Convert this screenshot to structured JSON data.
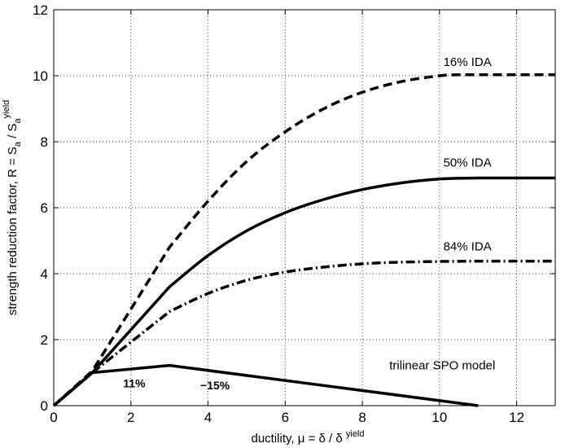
{
  "chart_data": {
    "type": "line",
    "xlabel": {
      "prefix": "ductility, ",
      "symbol": "μ",
      "mid": " = δ / δ ",
      "sup": "yield"
    },
    "ylabel": {
      "prefix": "strength reduction factor, R = S",
      "sub1": "a",
      "mid": " / S",
      "sub2": "a",
      "sup": "yield"
    },
    "xlim": [
      0,
      13
    ],
    "ylim": [
      0,
      12
    ],
    "xticks": [
      0,
      2,
      4,
      6,
      8,
      10,
      12
    ],
    "yticks": [
      0,
      2,
      4,
      6,
      8,
      10,
      12
    ],
    "grid": true,
    "series": [
      {
        "name": "16% IDA",
        "style": "dashed",
        "x": [
          0,
          1,
          3,
          4,
          5,
          6,
          7,
          8,
          9,
          10,
          10.5,
          11,
          12,
          13
        ],
        "y": [
          0,
          1.05,
          4.8,
          6.2,
          7.4,
          8.3,
          9.0,
          9.5,
          9.82,
          10.0,
          10.03,
          10.03,
          10.03,
          10.03
        ]
      },
      {
        "name": "50% IDA",
        "style": "solid",
        "x": [
          0,
          1,
          3,
          4,
          5,
          6,
          7,
          8,
          9,
          10,
          11,
          12,
          13
        ],
        "y": [
          0,
          1.0,
          3.6,
          4.55,
          5.3,
          5.85,
          6.25,
          6.55,
          6.75,
          6.87,
          6.9,
          6.9,
          6.9
        ]
      },
      {
        "name": "84% IDA",
        "style": "dashdot",
        "x": [
          0,
          1,
          3,
          4,
          5,
          6,
          7,
          8,
          9,
          10,
          11,
          12,
          13
        ],
        "y": [
          0,
          1.0,
          2.85,
          3.4,
          3.8,
          4.05,
          4.2,
          4.3,
          4.35,
          4.37,
          4.38,
          4.38,
          4.38
        ]
      },
      {
        "name": "trilinear SPO model",
        "style": "solid",
        "x": [
          0,
          1,
          3,
          11
        ],
        "y": [
          0,
          1.0,
          1.22,
          0.0
        ]
      }
    ],
    "annotations": [
      {
        "text": "16% IDA",
        "x": 10.1,
        "y": 10.3
      },
      {
        "text": "50% IDA",
        "x": 10.1,
        "y": 7.25
      },
      {
        "text": "84% IDA",
        "x": 10.1,
        "y": 4.7
      },
      {
        "text": "trilinear SPO model",
        "x": 8.7,
        "y": 1.1
      },
      {
        "text": "11%",
        "x": 1.8,
        "y": 0.55,
        "bold": true
      },
      {
        "text": "−15%",
        "x": 3.8,
        "y": 0.5,
        "bold": true
      }
    ]
  }
}
